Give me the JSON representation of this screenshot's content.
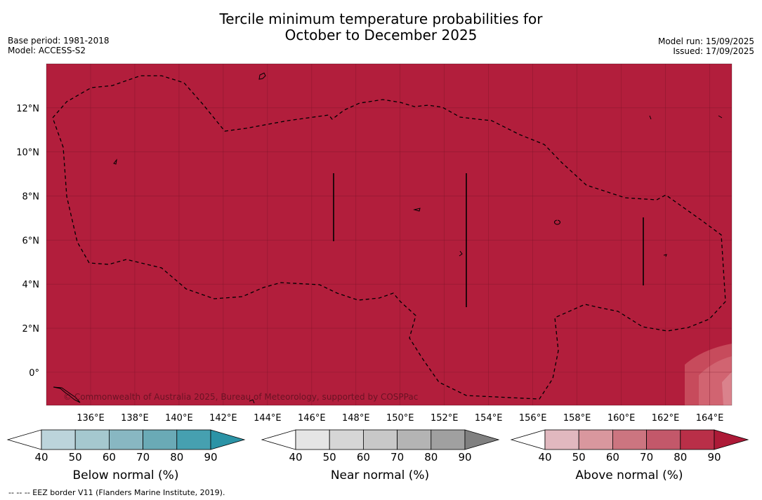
{
  "header": {
    "title_line1": "Tercile minimum temperature probabilities for",
    "title_line2": "October to December 2025",
    "base_period": "Base period: 1981-2018",
    "model": "Model: ACCESS-S2",
    "model_run": "Model run: 15/09/2025",
    "issued": "Issued: 17/09/2025"
  },
  "map": {
    "copyright": "© Commonwealth of Australia 2025, Bureau of Meteorology, supported by COSPPac",
    "lon_labels": [
      "136°E",
      "138°E",
      "140°E",
      "142°E",
      "144°E",
      "146°E",
      "148°E",
      "150°E",
      "152°E",
      "154°E",
      "156°E",
      "158°E",
      "160°E",
      "162°E",
      "164°E"
    ],
    "lat_labels": [
      "12°N",
      "10°N",
      "8°N",
      "6°N",
      "4°N",
      "2°N",
      "0°"
    ],
    "fill_color": "#b21e3c",
    "lon_range": [
      134,
      165
    ],
    "lat_range": [
      -1.5,
      14
    ]
  },
  "legend": {
    "tick_labels": [
      "40",
      "50",
      "60",
      "70",
      "80",
      "90"
    ],
    "below": {
      "label": "Below normal (%)",
      "colors": [
        "#bcd4db",
        "#a5c8cf",
        "#88b7c2",
        "#6aaab6",
        "#46a0b0",
        "#2b93a6"
      ]
    },
    "near": {
      "label": "Near normal (%)",
      "colors": [
        "#e5e5e5",
        "#d6d6d6",
        "#c8c8c8",
        "#b4b4b4",
        "#a0a0a0",
        "#808080"
      ]
    },
    "above": {
      "label": "Above normal (%)",
      "colors": [
        "#e1b8bf",
        "#d9979e",
        "#cc7580",
        "#c3586a",
        "#b92f48",
        "#ad1a37"
      ]
    }
  },
  "footer": {
    "eez_note": "--  --  -- EEZ border V11 (Flanders Marine Institute, 2019)."
  }
}
